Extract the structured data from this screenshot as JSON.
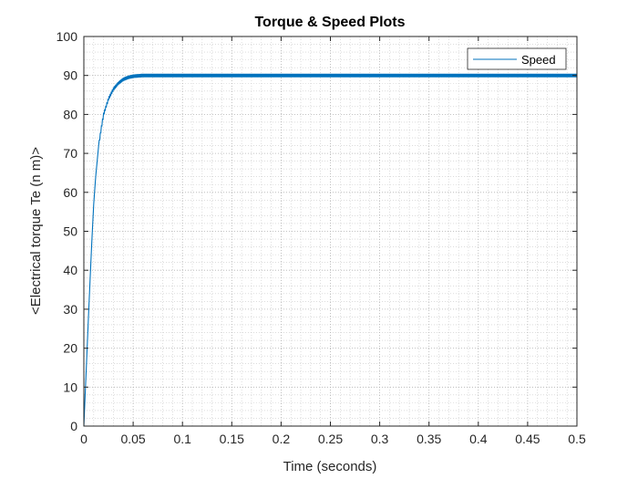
{
  "chart_data": {
    "type": "line",
    "title": "Torque & Speed Plots",
    "xlabel": "Time (seconds)",
    "ylabel": "<Electrical torque Te (n m)>",
    "xlim": [
      0,
      0.5
    ],
    "ylim": [
      0,
      100
    ],
    "xticks": [
      "0",
      "0.05",
      "0.1",
      "0.15",
      "0.2",
      "0.25",
      "0.3",
      "0.35",
      "0.4",
      "0.45",
      "0.5"
    ],
    "yticks": [
      "0",
      "10",
      "20",
      "30",
      "40",
      "50",
      "60",
      "70",
      "80",
      "90",
      "100"
    ],
    "grid": true,
    "minor_grid": true,
    "legend_position": "top-right",
    "series": [
      {
        "name": "Speed",
        "color": "#0072BD",
        "x": [
          0,
          0.002,
          0.005,
          0.008,
          0.01,
          0.012,
          0.015,
          0.018,
          0.02,
          0.025,
          0.03,
          0.035,
          0.04,
          0.045,
          0.05,
          0.055,
          0.06,
          0.07,
          0.08,
          0.1,
          0.15,
          0.2,
          0.25,
          0.3,
          0.35,
          0.4,
          0.45,
          0.5
        ],
        "y": [
          0,
          12,
          30,
          47,
          57,
          64,
          72,
          77,
          80,
          84,
          86.5,
          88,
          89,
          89.5,
          89.8,
          89.9,
          90,
          90,
          90,
          90,
          90,
          90,
          90,
          90,
          90,
          90,
          90,
          90
        ]
      }
    ]
  }
}
